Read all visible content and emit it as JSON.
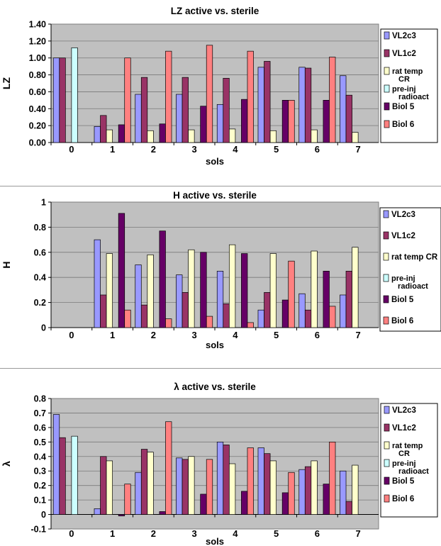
{
  "chart_data": [
    {
      "type": "bar",
      "title": "LZ active vs. sterile",
      "xlabel": "sols",
      "ylabel": "LZ",
      "ylim": [
        0,
        1.4
      ],
      "y_ticks": [
        "0.00",
        "0.20",
        "0.40",
        "0.60",
        "0.80",
        "1.00",
        "1.20",
        "1.40"
      ],
      "categories": [
        "0",
        "1",
        "2",
        "3",
        "4",
        "5",
        "6",
        "7"
      ],
      "grid": true,
      "legend_position": "right",
      "series": [
        {
          "name": "VL2c3",
          "color": "#9999ff",
          "values": [
            1.0,
            0.19,
            0.57,
            0.57,
            0.45,
            0.89,
            0.89,
            0.79
          ]
        },
        {
          "name": "VL1c2",
          "color": "#993366",
          "values": [
            1.0,
            0.32,
            0.77,
            0.77,
            0.76,
            0.96,
            0.88,
            0.56
          ]
        },
        {
          "name": "rat temp CR",
          "color": "#ffffcc",
          "values": [
            null,
            0.15,
            0.14,
            0.15,
            0.16,
            0.14,
            0.15,
            0.12
          ]
        },
        {
          "name": "pre-inj radioact",
          "color": "#ccffff",
          "values": [
            1.12,
            null,
            null,
            null,
            null,
            null,
            null,
            null
          ]
        },
        {
          "name": "Biol 5",
          "color": "#660066",
          "values": [
            null,
            0.21,
            0.22,
            0.43,
            0.51,
            0.5,
            0.5,
            null
          ]
        },
        {
          "name": "Biol 6",
          "color": "#ff8080",
          "values": [
            null,
            1.0,
            1.08,
            1.15,
            1.08,
            0.5,
            1.01,
            null
          ]
        }
      ]
    },
    {
      "type": "bar",
      "title": "H active vs. sterile",
      "xlabel": "sols",
      "ylabel": "H",
      "ylim": [
        0,
        1
      ],
      "y_ticks": [
        "0",
        "0.2",
        "0.4",
        "0.6",
        "0.8",
        "1"
      ],
      "categories": [
        "0",
        "1",
        "2",
        "3",
        "4",
        "5",
        "6",
        "7"
      ],
      "grid": true,
      "legend_position": "right",
      "series": [
        {
          "name": "VL2c3",
          "color": "#9999ff",
          "values": [
            null,
            0.7,
            0.5,
            0.42,
            0.45,
            0.14,
            0.27,
            0.26
          ]
        },
        {
          "name": "VL1c2",
          "color": "#993366",
          "values": [
            null,
            0.26,
            0.18,
            0.28,
            0.19,
            0.28,
            0.14,
            0.45
          ]
        },
        {
          "name": "rat temp CR",
          "color": "#ffffcc",
          "values": [
            null,
            0.59,
            0.58,
            0.62,
            0.66,
            0.59,
            0.61,
            0.64
          ]
        },
        {
          "name": "pre-inj radioact",
          "color": "#ccffff",
          "values": [
            null,
            null,
            null,
            null,
            null,
            null,
            null,
            null
          ]
        },
        {
          "name": "Biol 5",
          "color": "#660066",
          "values": [
            null,
            0.91,
            0.77,
            0.6,
            0.59,
            0.22,
            0.45,
            null
          ]
        },
        {
          "name": "Biol 6",
          "color": "#ff8080",
          "values": [
            null,
            0.14,
            0.07,
            0.09,
            0.04,
            0.53,
            0.17,
            null
          ]
        }
      ]
    },
    {
      "type": "bar",
      "title": "λ active vs. sterile",
      "xlabel": "sols",
      "ylabel": "λ",
      "ylim": [
        -0.1,
        0.8
      ],
      "y_ticks": [
        "-0.1",
        "0",
        "0.1",
        "0.2",
        "0.3",
        "0.4",
        "0.5",
        "0.6",
        "0.7",
        "0.8"
      ],
      "categories": [
        "0",
        "1",
        "2",
        "3",
        "4",
        "5",
        "6",
        "7"
      ],
      "grid": true,
      "legend_position": "right",
      "series": [
        {
          "name": "VL2c3",
          "color": "#9999ff",
          "values": [
            0.69,
            0.04,
            0.29,
            0.39,
            0.5,
            0.46,
            0.31,
            0.3
          ]
        },
        {
          "name": "VL1c2",
          "color": "#993366",
          "values": [
            0.53,
            0.4,
            0.45,
            0.38,
            0.48,
            0.42,
            0.33,
            0.09
          ]
        },
        {
          "name": "rat temp CR",
          "color": "#ffffcc",
          "values": [
            null,
            0.37,
            0.43,
            0.4,
            0.35,
            0.37,
            0.37,
            0.34
          ]
        },
        {
          "name": "pre-inj radioact",
          "color": "#ccffff",
          "values": [
            0.54,
            null,
            null,
            null,
            null,
            null,
            null,
            null
          ]
        },
        {
          "name": "Biol 5",
          "color": "#660066",
          "values": [
            null,
            -0.01,
            0.02,
            0.14,
            0.16,
            0.15,
            0.21,
            null
          ]
        },
        {
          "name": "Biol 6",
          "color": "#ff8080",
          "values": [
            null,
            0.21,
            0.64,
            0.38,
            0.46,
            0.29,
            0.5,
            null
          ]
        }
      ]
    }
  ]
}
